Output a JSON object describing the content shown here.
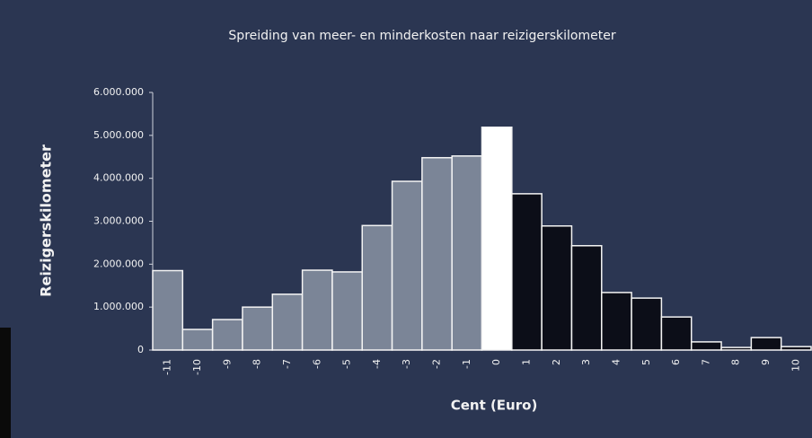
{
  "chart_data": {
    "type": "bar",
    "title": "Spreiding van meer- en minderkosten naar reizigerskilometer",
    "x_label": "Cent (Euro)",
    "y_label": "Reizigerskilometer",
    "categories": [
      "-11",
      "-10",
      "-9",
      "-8",
      "-7",
      "-6",
      "-5",
      "-4",
      "-3",
      "-2",
      "-1",
      "0",
      "1",
      "2",
      "3",
      "4",
      "5",
      "6",
      "7",
      "8",
      "9",
      "10"
    ],
    "values": [
      1850000,
      480000,
      710000,
      1000000,
      1300000,
      1860000,
      1820000,
      2900000,
      3930000,
      4480000,
      4520000,
      5190000,
      3640000,
      2890000,
      2430000,
      1340000,
      1210000,
      770000,
      190000,
      60000,
      290000,
      80000
    ],
    "colors": [
      "#7b8597",
      "#7b8597",
      "#7b8597",
      "#7b8597",
      "#7b8597",
      "#7b8597",
      "#7b8597",
      "#7b8597",
      "#7b8597",
      "#7b8597",
      "#7b8597",
      "#ffffff",
      "#0c0e18",
      "#0c0e18",
      "#0c0e18",
      "#0c0e18",
      "#0c0e18",
      "#0c0e18",
      "#0c0e18",
      "#0c0e18",
      "#0c0e18",
      "#0c0e18"
    ],
    "ylim": [
      0,
      6000000
    ],
    "yticks": [
      {
        "value": 0,
        "label": "0"
      },
      {
        "value": 1000000,
        "label": "1.000.000"
      },
      {
        "value": 2000000,
        "label": "2.000.000"
      },
      {
        "value": 3000000,
        "label": "3.000.000"
      },
      {
        "value": 4000000,
        "label": "4.000.000"
      },
      {
        "value": 5000000,
        "label": "5.000.000"
      },
      {
        "value": 6000000,
        "label": "6.000.000"
      }
    ],
    "grid": false
  }
}
